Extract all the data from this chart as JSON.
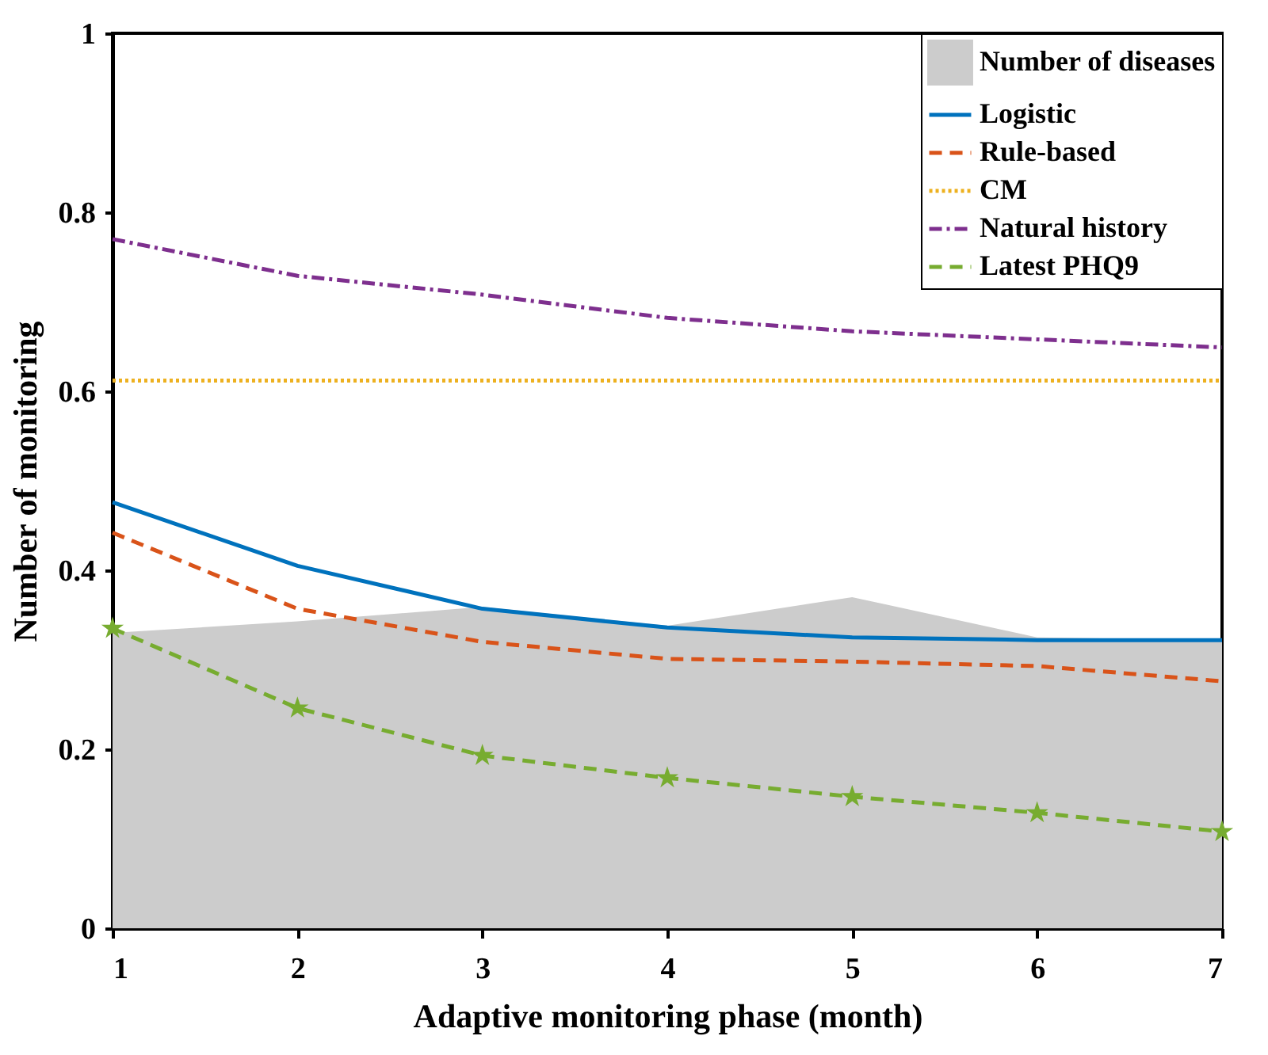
{
  "chart_data": {
    "type": "line",
    "xlabel": "Adaptive monitoring phase (month)",
    "ylabel": "Number of monitoring",
    "x": [
      1,
      2,
      3,
      4,
      5,
      6,
      7
    ],
    "xlim": [
      1,
      7
    ],
    "xticks": [
      1,
      2,
      3,
      4,
      5,
      6,
      7
    ],
    "ylim": [
      0,
      1
    ],
    "yticks": [
      0,
      0.2,
      0.4,
      0.6,
      0.8,
      1
    ],
    "grid": false,
    "legend": "top right",
    "series": [
      {
        "name": "Number of diseases",
        "type": "area",
        "color": "#cccccc",
        "values": [
          0.33,
          0.343,
          0.359,
          0.338,
          0.37,
          0.325,
          0.322
        ]
      },
      {
        "name": "Logistic",
        "color": "#0072bd",
        "line_style": "solid",
        "values": [
          0.476,
          0.405,
          0.357,
          0.336,
          0.325,
          0.322,
          0.322
        ]
      },
      {
        "name": "Rule-based",
        "color": "#d95319",
        "line_style": "dashed",
        "values": [
          0.442,
          0.357,
          0.32,
          0.301,
          0.298,
          0.293,
          0.276
        ]
      },
      {
        "name": "CM",
        "color": "#edb120",
        "line_style": "dotted",
        "values": [
          0.612,
          0.612,
          0.612,
          0.612,
          0.612,
          0.612,
          0.612
        ]
      },
      {
        "name": "Natural history",
        "color": "#7e2f8e",
        "line_style": "dashdot",
        "values": [
          0.77,
          0.729,
          0.708,
          0.682,
          0.667,
          0.658,
          0.649
        ]
      },
      {
        "name": "Latest PHQ9",
        "color": "#77ac30",
        "line_style": "dashed",
        "marker": "star",
        "values": [
          0.335,
          0.246,
          0.193,
          0.168,
          0.147,
          0.129,
          0.108
        ]
      }
    ]
  }
}
